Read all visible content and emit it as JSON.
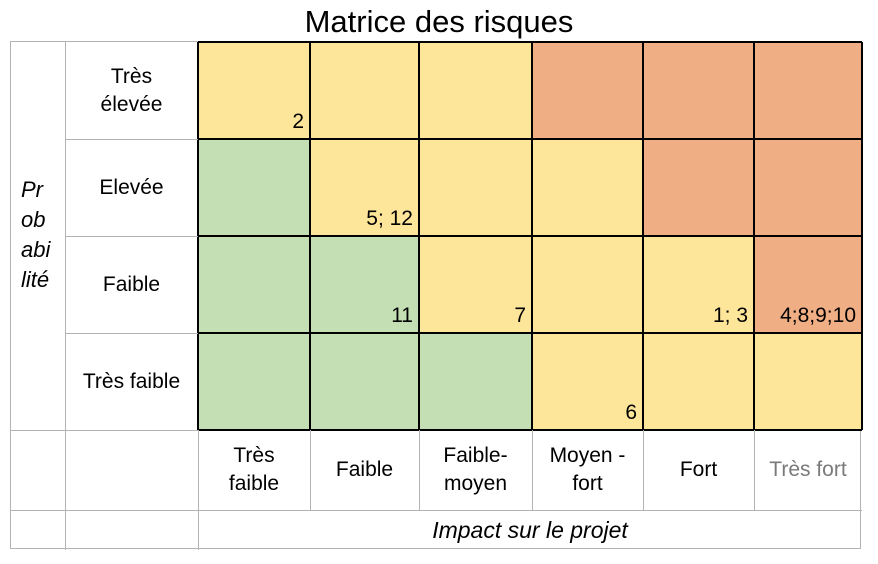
{
  "title": "Matrice des risques",
  "y_axis_label": "Probabilité",
  "x_axis_label": "Impact sur le projet",
  "rows": [
    {
      "label": "Très élevée",
      "cells": [
        {
          "color": "yellow",
          "value": "2"
        },
        {
          "color": "yellow",
          "value": ""
        },
        {
          "color": "yellow",
          "value": ""
        },
        {
          "color": "orange",
          "value": ""
        },
        {
          "color": "orange",
          "value": ""
        },
        {
          "color": "orange",
          "value": ""
        }
      ]
    },
    {
      "label": "Elevée",
      "cells": [
        {
          "color": "green",
          "value": ""
        },
        {
          "color": "yellow",
          "value": "5; 12"
        },
        {
          "color": "yellow",
          "value": ""
        },
        {
          "color": "yellow",
          "value": ""
        },
        {
          "color": "orange",
          "value": ""
        },
        {
          "color": "orange",
          "value": ""
        }
      ]
    },
    {
      "label": "Faible",
      "cells": [
        {
          "color": "green",
          "value": ""
        },
        {
          "color": "green",
          "value": "11"
        },
        {
          "color": "yellow",
          "value": "7"
        },
        {
          "color": "yellow",
          "value": ""
        },
        {
          "color": "yellow",
          "value": "1; 3"
        },
        {
          "color": "orange",
          "value": "4;8;9;10"
        }
      ]
    },
    {
      "label": "Très faible",
      "cells": [
        {
          "color": "green",
          "value": ""
        },
        {
          "color": "green",
          "value": ""
        },
        {
          "color": "green",
          "value": ""
        },
        {
          "color": "yellow",
          "value": "6"
        },
        {
          "color": "yellow",
          "value": ""
        },
        {
          "color": "yellow",
          "value": ""
        }
      ]
    }
  ],
  "columns": [
    "Très faible",
    "Faible",
    "Faible-moyen",
    "Moyen - fort",
    "Fort",
    "Très fort"
  ]
}
